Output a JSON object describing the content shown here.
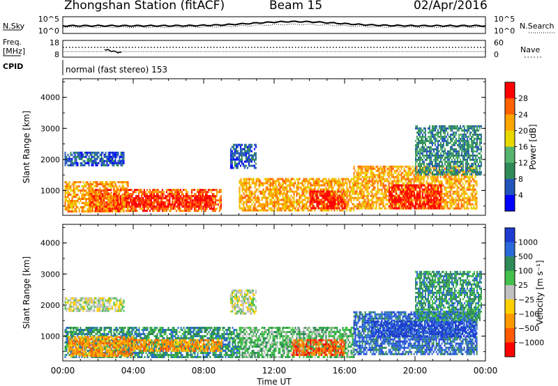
{
  "header": {
    "station": "Zhongshan Station (fitACF)",
    "beam": "Beam 15",
    "date": "02/Apr/2016"
  },
  "strip_nsky": {
    "left_label": "N.Sky",
    "left_ticks": [
      "10^5",
      "10^0"
    ],
    "right_label": "N.Search",
    "right_ticks": [
      "10^5",
      "10^0"
    ]
  },
  "strip_freq": {
    "left_label_top": "Freq.",
    "left_label_bottom": "[MHz]",
    "left_ticks": [
      "18",
      "8"
    ],
    "right_label": "Nave",
    "right_ticks": [
      "60",
      "0"
    ]
  },
  "cpid": {
    "label": "CPID",
    "mode": "normal (fast stereo) 153"
  },
  "chart_data": [
    {
      "type": "heatmap",
      "name": "power",
      "ylabel": "Slant Range [km]",
      "xlabel": "",
      "ylim": [
        200,
        4600
      ],
      "yticks": [
        "1000",
        "2000",
        "3000",
        "4000"
      ],
      "xticks": [
        "00:00",
        "04:00",
        "08:00",
        "12:00",
        "16:00",
        "20:00",
        "00:00"
      ],
      "colorbar_label": "Power [dB]",
      "colorbar_ticks": [
        "4",
        "8",
        "12",
        "16",
        "20",
        "24",
        "28"
      ],
      "colorbar_colors": [
        "#0000ff",
        "#2255bb",
        "#2e8b57",
        "#56b36e",
        "#e8d800",
        "#ffa500",
        "#ff6000",
        "#ff0000"
      ],
      "regions": [
        {
          "t0": 0.1,
          "t1": 3.7,
          "r0": 300,
          "r1": 1300,
          "level": 5
        },
        {
          "t0": 1.5,
          "t1": 9.0,
          "r0": 350,
          "r1": 1050,
          "level": 6
        },
        {
          "t0": 3.5,
          "t1": 8.5,
          "r0": 450,
          "r1": 850,
          "level": 7
        },
        {
          "t0": 0.1,
          "t1": 3.5,
          "r0": 1800,
          "r1": 2250,
          "level": 1
        },
        {
          "t0": 9.5,
          "t1": 11.0,
          "r0": 1750,
          "r1": 2500,
          "level": 1
        },
        {
          "t0": 10.0,
          "t1": 16.5,
          "r0": 350,
          "r1": 1400,
          "level": 5
        },
        {
          "t0": 14.0,
          "t1": 16.0,
          "r0": 400,
          "r1": 1000,
          "level": 7
        },
        {
          "t0": 16.5,
          "t1": 23.5,
          "r0": 400,
          "r1": 1800,
          "level": 5
        },
        {
          "t0": 18.5,
          "t1": 21.5,
          "r0": 400,
          "r1": 1200,
          "level": 7
        },
        {
          "t0": 20.0,
          "t1": 23.8,
          "r0": 1500,
          "r1": 3100,
          "level": 2
        }
      ]
    },
    {
      "type": "heatmap",
      "name": "velocity",
      "ylabel": "Slant Range [km]",
      "xlabel": "Time UT",
      "ylim": [
        200,
        4600
      ],
      "yticks": [
        "1000",
        "2000",
        "3000",
        "4000"
      ],
      "xticks": [
        "00:00",
        "04:00",
        "08:00",
        "12:00",
        "16:00",
        "20:00",
        "00:00"
      ],
      "colorbar_label": "Velocity [m s⁻¹]",
      "colorbar_ticks": [
        "1000",
        "500",
        "100",
        "25",
        "−25",
        "−100",
        "−500",
        "−1000"
      ],
      "colorbar_colors": [
        "#1e3cd2",
        "#2a6ad8",
        "#2e8b57",
        "#44c04a",
        "#c0c0c0",
        "#ffd000",
        "#ff9a00",
        "#ff5a00",
        "#ff0000"
      ],
      "regions": [
        {
          "t0": 0.1,
          "t1": 3.5,
          "r0": 1800,
          "r1": 2250,
          "level": 4
        },
        {
          "t0": 9.5,
          "t1": 11.0,
          "r0": 1750,
          "r1": 2500,
          "level": 4
        },
        {
          "t0": 0.1,
          "t1": 10.0,
          "r0": 300,
          "r1": 1300,
          "level": 2
        },
        {
          "t0": 0.3,
          "t1": 4.0,
          "r0": 350,
          "r1": 1000,
          "level": 6
        },
        {
          "t0": 4.0,
          "t1": 9.0,
          "r0": 500,
          "r1": 900,
          "level": 6
        },
        {
          "t0": 10.0,
          "t1": 16.5,
          "r0": 350,
          "r1": 1300,
          "level": 3
        },
        {
          "t0": 13.0,
          "t1": 16.0,
          "r0": 400,
          "r1": 900,
          "level": 7
        },
        {
          "t0": 16.5,
          "t1": 23.5,
          "r0": 400,
          "r1": 1800,
          "level": 1
        },
        {
          "t0": 17.5,
          "t1": 23.5,
          "r0": 1000,
          "r1": 1500,
          "level": 0
        },
        {
          "t0": 20.0,
          "t1": 23.8,
          "r0": 1500,
          "r1": 3100,
          "level": 2
        }
      ]
    }
  ]
}
